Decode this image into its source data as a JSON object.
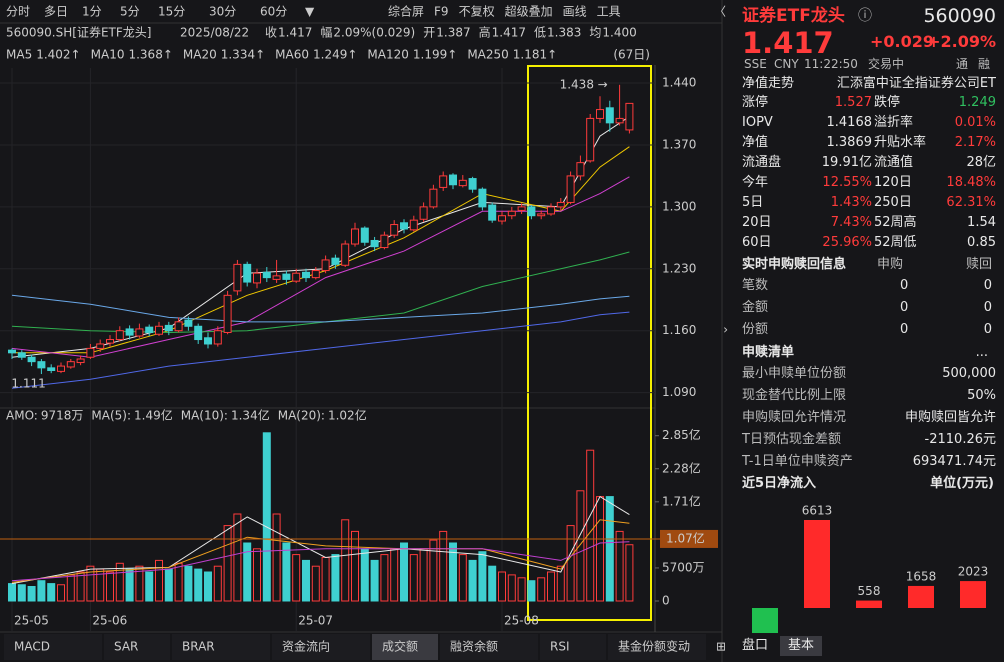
{
  "toolbar": {
    "tabs": [
      "分时",
      "多日",
      "1分",
      "5分",
      "15分",
      "30分",
      "60分"
    ],
    "tools": [
      "综合屏",
      "F9",
      "不复权",
      "超级叠加",
      "画线",
      "工具"
    ]
  },
  "info_line": {
    "symbol": "560090.SH[证券ETF龙头]",
    "date": "2025/08/22",
    "items": [
      [
        "收",
        "1.417"
      ],
      [
        "幅",
        "2.09%(0.029)"
      ],
      [
        "开",
        "1.387"
      ],
      [
        "高",
        "1.417"
      ],
      [
        "低",
        "1.383"
      ],
      [
        "均",
        "1.400"
      ]
    ]
  },
  "ma_legend": [
    [
      "MA5",
      "1.402↑"
    ],
    [
      "MA10",
      "1.368↑"
    ],
    [
      "MA20",
      "1.334↑"
    ],
    [
      "MA60",
      "1.249↑"
    ],
    [
      "MA120",
      "1.199↑"
    ],
    [
      "MA250",
      "1.181↑"
    ]
  ],
  "period": "(67日)",
  "chart_data": {
    "type": "candlestick",
    "ylim": [
      1.076,
      1.457
    ],
    "yticks": [
      {
        "value": 1.44,
        "label": "1.440"
      },
      {
        "value": 1.37,
        "label": "1.370"
      },
      {
        "value": 1.3,
        "label": "1.300"
      },
      {
        "value": 1.23,
        "label": "1.230"
      },
      {
        "value": 1.16,
        "label": "1.160"
      },
      {
        "value": 1.09,
        "label": "1.090"
      }
    ],
    "xticks": [
      {
        "value": 0,
        "label": "25-05"
      },
      {
        "value": 8,
        "label": "25-06"
      },
      {
        "value": 29,
        "label": "25-07"
      },
      {
        "value": 50,
        "label": "25-08"
      }
    ],
    "high_mark": 1.438,
    "low_mark": 1.111,
    "up_color": "#ff3b3b",
    "down_color": "#3fd0d0",
    "candles": [
      [
        1.138,
        1.14,
        1.128,
        1.135
      ],
      [
        1.135,
        1.138,
        1.127,
        1.13
      ],
      [
        1.13,
        1.133,
        1.12,
        1.125
      ],
      [
        1.125,
        1.128,
        1.111,
        1.118
      ],
      [
        1.118,
        1.122,
        1.112,
        1.115
      ],
      [
        1.114,
        1.124,
        1.112,
        1.12
      ],
      [
        1.119,
        1.128,
        1.117,
        1.125
      ],
      [
        1.124,
        1.132,
        1.121,
        1.128
      ],
      [
        1.13,
        1.145,
        1.128,
        1.14
      ],
      [
        1.14,
        1.15,
        1.136,
        1.145
      ],
      [
        1.146,
        1.155,
        1.142,
        1.15
      ],
      [
        1.15,
        1.165,
        1.148,
        1.16
      ],
      [
        1.162,
        1.166,
        1.15,
        1.155
      ],
      [
        1.154,
        1.168,
        1.152,
        1.162
      ],
      [
        1.164,
        1.167,
        1.154,
        1.158
      ],
      [
        1.156,
        1.17,
        1.154,
        1.165
      ],
      [
        1.166,
        1.17,
        1.155,
        1.16
      ],
      [
        1.16,
        1.175,
        1.158,
        1.17
      ],
      [
        1.172,
        1.176,
        1.16,
        1.165
      ],
      [
        1.165,
        1.168,
        1.145,
        1.15
      ],
      [
        1.152,
        1.158,
        1.14,
        1.145
      ],
      [
        1.145,
        1.165,
        1.142,
        1.16
      ],
      [
        1.158,
        1.205,
        1.156,
        1.2
      ],
      [
        1.205,
        1.24,
        1.2,
        1.235
      ],
      [
        1.235,
        1.238,
        1.21,
        1.215
      ],
      [
        1.214,
        1.23,
        1.208,
        1.225
      ],
      [
        1.226,
        1.232,
        1.215,
        1.22
      ],
      [
        1.218,
        1.24,
        1.214,
        1.222
      ],
      [
        1.224,
        1.228,
        1.212,
        1.218
      ],
      [
        1.216,
        1.23,
        1.214,
        1.225
      ],
      [
        1.226,
        1.23,
        1.215,
        1.22
      ],
      [
        1.22,
        1.232,
        1.218,
        1.228
      ],
      [
        1.228,
        1.245,
        1.225,
        1.24
      ],
      [
        1.242,
        1.246,
        1.23,
        1.235
      ],
      [
        1.234,
        1.262,
        1.232,
        1.258
      ],
      [
        1.258,
        1.282,
        1.255,
        1.275
      ],
      [
        1.276,
        1.278,
        1.256,
        1.26
      ],
      [
        1.262,
        1.266,
        1.25,
        1.255
      ],
      [
        1.254,
        1.272,
        1.252,
        1.268
      ],
      [
        1.268,
        1.285,
        1.265,
        1.28
      ],
      [
        1.282,
        1.286,
        1.27,
        1.275
      ],
      [
        1.274,
        1.29,
        1.272,
        1.285
      ],
      [
        1.286,
        1.305,
        1.283,
        1.3
      ],
      [
        1.3,
        1.325,
        1.298,
        1.32
      ],
      [
        1.322,
        1.34,
        1.318,
        1.335
      ],
      [
        1.336,
        1.338,
        1.32,
        1.325
      ],
      [
        1.324,
        1.336,
        1.322,
        1.33
      ],
      [
        1.332,
        1.334,
        1.316,
        1.32
      ],
      [
        1.32,
        1.322,
        1.296,
        1.3
      ],
      [
        1.302,
        1.305,
        1.282,
        1.285
      ],
      [
        1.284,
        1.295,
        1.28,
        1.29
      ],
      [
        1.29,
        1.3,
        1.286,
        1.295
      ],
      [
        1.296,
        1.304,
        1.292,
        1.3
      ],
      [
        1.3,
        1.302,
        1.286,
        1.29
      ],
      [
        1.29,
        1.296,
        1.286,
        1.292
      ],
      [
        1.292,
        1.304,
        1.29,
        1.3
      ],
      [
        1.3,
        1.31,
        1.296,
        1.305
      ],
      [
        1.305,
        1.34,
        1.303,
        1.335
      ],
      [
        1.335,
        1.358,
        1.33,
        1.35
      ],
      [
        1.352,
        1.405,
        1.35,
        1.4
      ],
      [
        1.4,
        1.425,
        1.395,
        1.41
      ],
      [
        1.412,
        1.42,
        1.385,
        1.395
      ],
      [
        1.395,
        1.438,
        1.392,
        1.4
      ],
      [
        1.387,
        1.417,
        1.383,
        1.417
      ]
    ],
    "ma_x": [
      0,
      8,
      16,
      24,
      32,
      40,
      48,
      56,
      60,
      63
    ],
    "ma_series": [
      {
        "name": "MA5",
        "color": "#e8e8e8",
        "values": [
          1.13,
          1.14,
          1.163,
          1.225,
          1.23,
          1.275,
          1.305,
          1.3,
          1.38,
          1.402
        ]
      },
      {
        "name": "MA10",
        "color": "#f0c800",
        "values": [
          1.135,
          1.135,
          1.16,
          1.2,
          1.228,
          1.265,
          1.315,
          1.295,
          1.345,
          1.368
        ]
      },
      {
        "name": "MA20",
        "color": "#d040d0",
        "values": [
          1.14,
          1.13,
          1.15,
          1.17,
          1.22,
          1.25,
          1.295,
          1.295,
          1.315,
          1.334
        ]
      },
      {
        "name": "MA60",
        "color": "#30b050",
        "values": [
          1.165,
          1.16,
          1.158,
          1.16,
          1.17,
          1.18,
          1.21,
          1.23,
          1.24,
          1.249
        ]
      },
      {
        "name": "MA120",
        "color": "#6aa8e8",
        "values": [
          1.2,
          1.19,
          1.175,
          1.17,
          1.17,
          1.175,
          1.18,
          1.19,
          1.196,
          1.199
        ]
      },
      {
        "name": "MA250",
        "color": "#5068e8",
        "values": [
          1.095,
          1.105,
          1.12,
          1.13,
          1.14,
          1.15,
          1.16,
          1.17,
          1.178,
          1.181
        ]
      }
    ],
    "volume": {
      "legend": [
        [
          "AMO:",
          "9718万"
        ],
        [
          "MA(5):",
          "1.49亿"
        ],
        [
          "MA(10):",
          "1.34亿"
        ],
        [
          "MA(20):",
          "1.02亿"
        ]
      ],
      "ylim": [
        0,
        3.0
      ],
      "yticks": [
        0,
        {
          "value": 0.57,
          "label": "5700万"
        },
        {
          "value": 1.71,
          "label": "1.71亿"
        },
        {
          "value": 2.28,
          "label": "2.28亿"
        },
        {
          "value": 2.85,
          "label": "2.85亿"
        }
      ],
      "marker": {
        "value": 1.07,
        "label": "1.07亿"
      },
      "values": [
        0.3,
        0.28,
        0.25,
        0.35,
        0.3,
        0.28,
        0.45,
        0.5,
        0.6,
        0.55,
        0.5,
        0.65,
        0.55,
        0.6,
        0.5,
        0.7,
        0.55,
        0.65,
        0.6,
        0.55,
        0.5,
        0.6,
        1.3,
        1.5,
        1.0,
        0.9,
        2.9,
        1.5,
        1.0,
        0.8,
        0.7,
        0.6,
        0.75,
        0.8,
        1.4,
        1.2,
        0.9,
        0.7,
        0.8,
        0.9,
        1.0,
        0.8,
        0.9,
        1.05,
        1.2,
        1.0,
        0.8,
        0.7,
        0.85,
        0.6,
        0.5,
        0.45,
        0.4,
        0.35,
        0.4,
        0.5,
        0.6,
        1.3,
        1.9,
        2.6,
        1.8,
        1.8,
        1.2,
        0.97
      ],
      "ma_series": [
        {
          "color": "#e8e8e8",
          "values": [
            0.3,
            0.55,
            0.58,
            1.45,
            0.75,
            0.9,
            0.8,
            0.5,
            1.8,
            1.49
          ]
        },
        {
          "color": "#f0a020",
          "values": [
            0.32,
            0.5,
            0.58,
            1.1,
            0.95,
            0.9,
            0.9,
            0.55,
            1.4,
            1.34
          ]
        },
        {
          "color": "#c040d0",
          "values": [
            0.35,
            0.45,
            0.55,
            0.85,
            0.9,
            0.9,
            0.9,
            0.7,
            1.0,
            1.02
          ]
        }
      ]
    }
  },
  "bottom_tabs": [
    "MACD",
    "SAR",
    "BRAR",
    "资金流向",
    "成交额",
    "融资余额",
    "RSI",
    "基金份额变动"
  ],
  "quote": {
    "name": "证券ETF龙头",
    "code": "560090",
    "price": "1.417",
    "change": "+0.029",
    "change_pct": "+2.09%",
    "meta": [
      "SSE",
      "CNY",
      "11:22:50",
      "交易中",
      "通",
      "融"
    ]
  },
  "panel": {
    "nav": [
      "净值走势",
      "汇添富中证全指证券公司ET"
    ],
    "stats": [
      [
        "涨停",
        "1.527",
        "跌停",
        "1.249"
      ],
      [
        "IOPV",
        "1.4168",
        "溢折率",
        "0.01%"
      ],
      [
        "净值",
        "1.3869",
        "升贴水率",
        "2.17%"
      ],
      [
        "流通盘",
        "19.91亿",
        "流通值",
        "28亿"
      ],
      [
        "今年",
        "12.55%",
        "120日",
        "18.48%"
      ],
      [
        "5日",
        "1.43%",
        "250日",
        "62.31%"
      ],
      [
        "20日",
        "7.43%",
        "52周高",
        "1.54"
      ],
      [
        "60日",
        "25.96%",
        "52周低",
        "0.85"
      ]
    ],
    "realtime": {
      "title": "实时申购赎回信息",
      "cols": [
        "申购",
        "赎回"
      ],
      "rows": [
        [
          "笔数",
          "0",
          "0"
        ],
        [
          "金额",
          "0",
          "0"
        ],
        [
          "份额",
          "0",
          "0"
        ]
      ]
    },
    "list": {
      "title": "申赎清单",
      "more": "...",
      "rows": [
        [
          "最小申赎单位份额",
          "500,000"
        ],
        [
          "现金替代比例上限",
          "50%"
        ],
        [
          "申购赎回允许情况",
          "申购赎回皆允许"
        ],
        [
          "T日预估现金差额",
          "-2110.26元"
        ],
        [
          "T-1日单位申赎资产",
          "693471.74元"
        ]
      ]
    },
    "flow": {
      "title": "近5日净流入",
      "unit": "单位(万元)",
      "values": [
        -1880,
        6613,
        558,
        1658,
        2023
      ],
      "value_labels": [
        null,
        "6613",
        "558",
        "1658",
        "2023"
      ]
    },
    "tabs": [
      "盘口",
      "基本"
    ]
  }
}
